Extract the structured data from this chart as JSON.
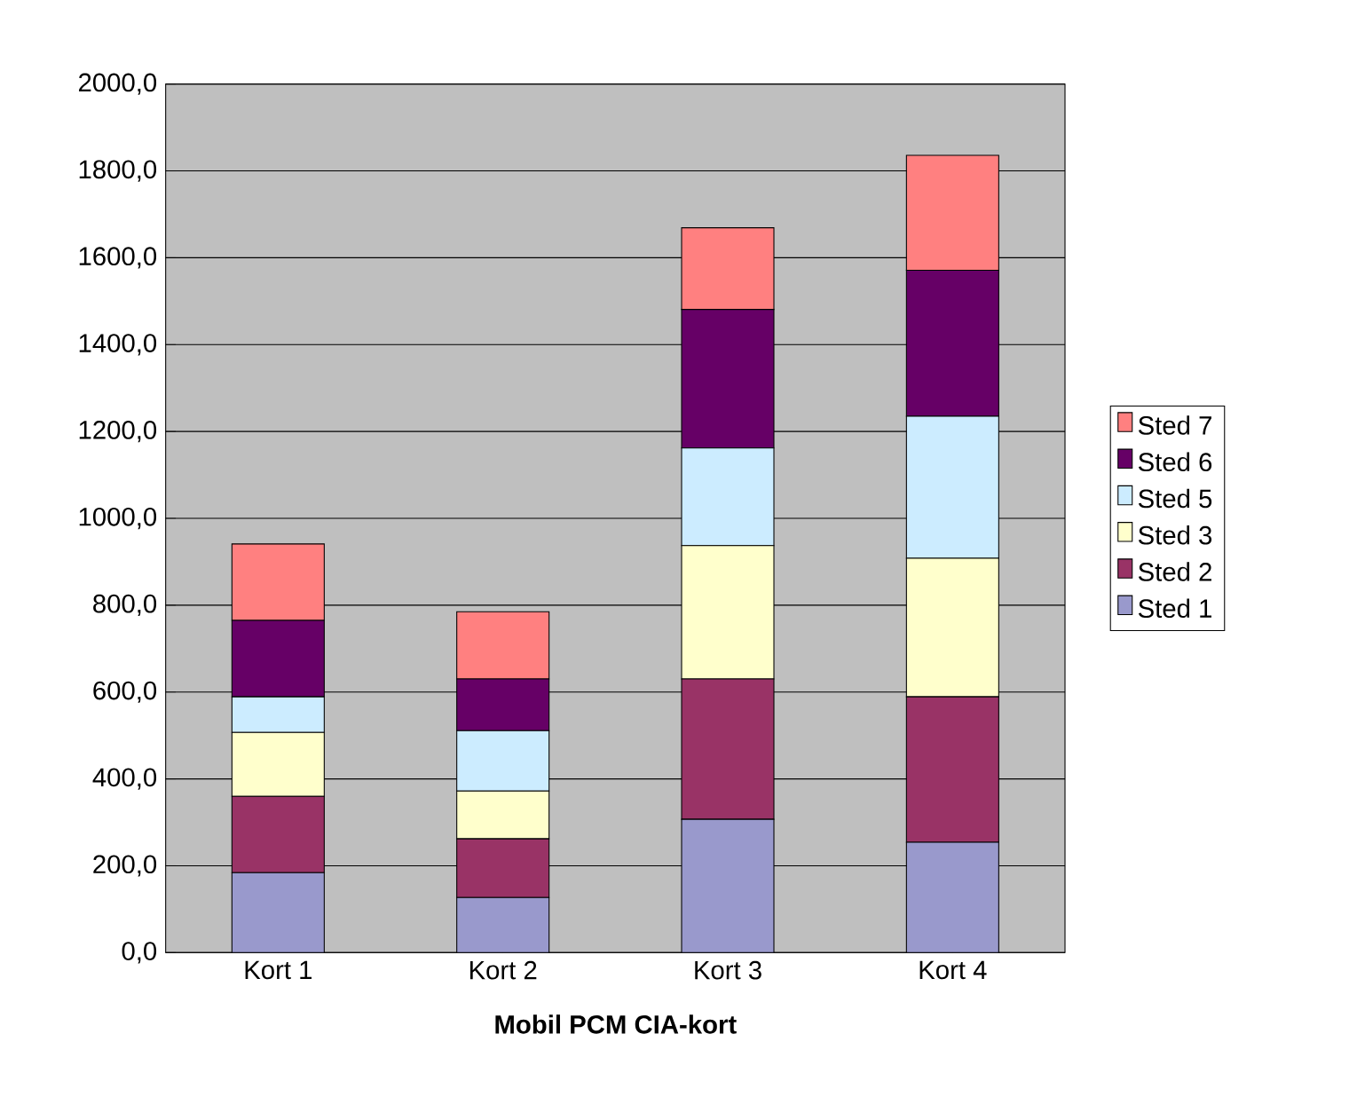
{
  "chart_data": {
    "type": "bar",
    "stacked": true,
    "xlabel": "Mobil PCM CIA-kort",
    "categories": [
      "Kort 1",
      "Kort 2",
      "Kort 3",
      "Kort 4"
    ],
    "series": [
      {
        "name": "Sted 1",
        "color": "#9999cc",
        "values": [
          184,
          127,
          307,
          254
        ]
      },
      {
        "name": "Sted 2",
        "color": "#993366",
        "values": [
          176,
          135,
          323,
          335
        ]
      },
      {
        "name": "Sted 3",
        "color": "#ffffcc",
        "values": [
          147,
          110,
          307,
          319
        ]
      },
      {
        "name": "Sted 5",
        "color": "#ccecff",
        "values": [
          82,
          139,
          225,
          327
        ]
      },
      {
        "name": "Sted 6",
        "color": "#660066",
        "values": [
          176,
          119,
          319,
          336
        ]
      },
      {
        "name": "Sted 7",
        "color": "#ff8080",
        "values": [
          176,
          155,
          188,
          265
        ]
      }
    ],
    "ylim": [
      0,
      2000
    ],
    "yticks": [
      {
        "value": 0,
        "label": "0,0"
      },
      {
        "value": 200,
        "label": "200,0"
      },
      {
        "value": 400,
        "label": "400,0"
      },
      {
        "value": 600,
        "label": "600,0"
      },
      {
        "value": 800,
        "label": "800,0"
      },
      {
        "value": 1000,
        "label": "1000,0"
      },
      {
        "value": 1200,
        "label": "1200,0"
      },
      {
        "value": 1400,
        "label": "1400,0"
      },
      {
        "value": 1600,
        "label": "1600,0"
      },
      {
        "value": 1800,
        "label": "1800,0"
      },
      {
        "value": 2000,
        "label": "2000,0"
      }
    ],
    "grid": "y",
    "legend": "right"
  }
}
